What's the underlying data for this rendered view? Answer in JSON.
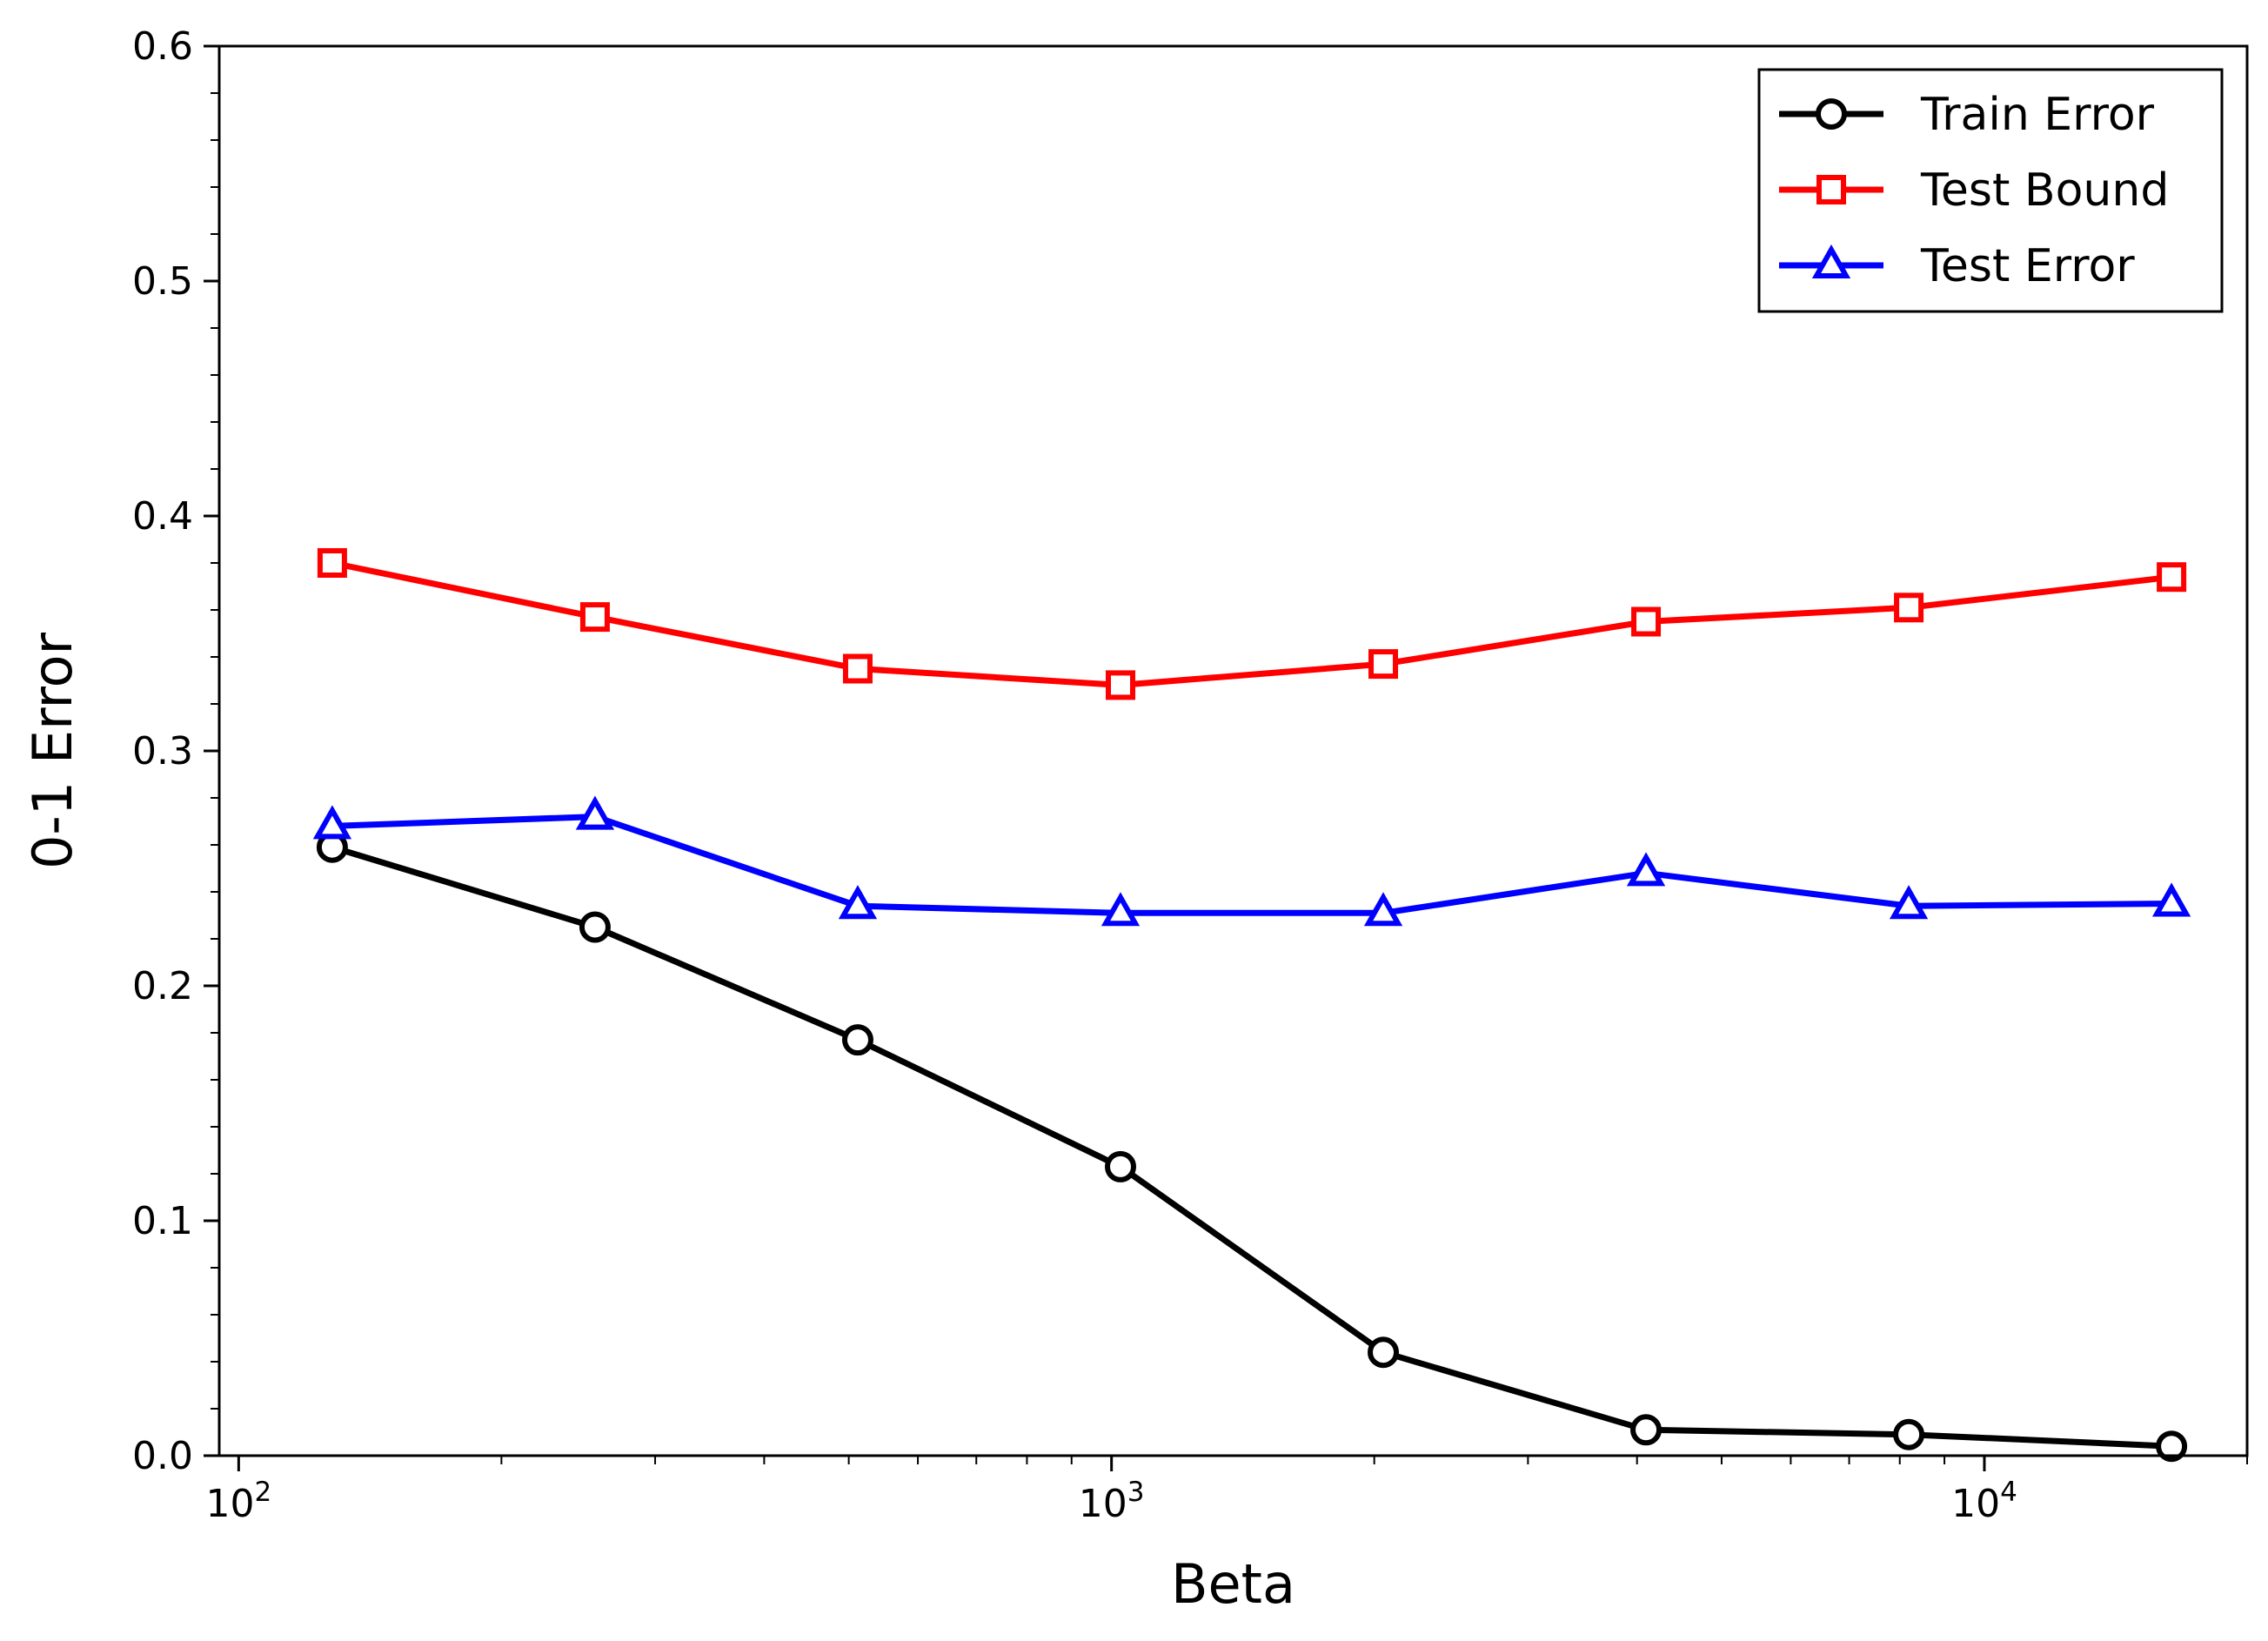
{
  "chart_data": {
    "type": "line",
    "xlabel": "Beta",
    "ylabel": "0-1 Error",
    "xscale": "log",
    "xlim": [
      95,
      20000
    ],
    "ylim": [
      0.0,
      0.6
    ],
    "x": [
      128,
      256,
      512,
      1024,
      2048,
      4096,
      8192,
      16384
    ],
    "x_ticks": [
      {
        "value": 100,
        "base": "10",
        "exp": "2"
      },
      {
        "value": 1000,
        "base": "10",
        "exp": "3"
      },
      {
        "value": 10000,
        "base": "10",
        "exp": "4"
      }
    ],
    "y_ticks": [
      "0.0",
      "0.1",
      "0.2",
      "0.3",
      "0.4",
      "0.5",
      "0.6"
    ],
    "grid": false,
    "legend_position": "top-right",
    "series": [
      {
        "name": "Train Error",
        "color": "#000000",
        "marker": "circle",
        "values": [
          0.259,
          0.225,
          0.177,
          0.123,
          0.044,
          0.011,
          0.009,
          0.004
        ]
      },
      {
        "name": "Test Bound",
        "color": "#ff0000",
        "marker": "square",
        "values": [
          0.38,
          0.357,
          0.335,
          0.328,
          0.337,
          0.355,
          0.361,
          0.374
        ]
      },
      {
        "name": "Test Error",
        "color": "#0000ff",
        "marker": "triangle",
        "values": [
          0.268,
          0.272,
          0.234,
          0.231,
          0.231,
          0.248,
          0.234,
          0.235
        ]
      }
    ]
  }
}
